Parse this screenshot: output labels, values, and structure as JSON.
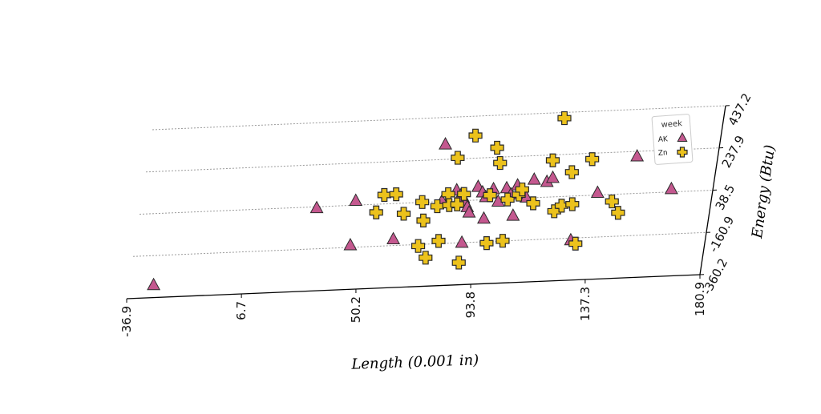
{
  "chart_data": {
    "type": "scatter",
    "title": "",
    "xlabel": "Length (0.001 in)",
    "ylabel": "Energy (Btu)",
    "xlim": [
      -36.9,
      180.9
    ],
    "ylim": [
      -360.2,
      437.2
    ],
    "x_ticks": [
      "-36.9",
      "6.7",
      "50.2",
      "93.8",
      "137.3",
      "180.9"
    ],
    "y_ticks": [
      "-360.2",
      "-160.9",
      "38.5",
      "237.9",
      "437.2"
    ],
    "grid": "horizontal dashed",
    "legend": {
      "title": "week",
      "placement": "top-right"
    },
    "series": [
      {
        "name": "AK",
        "marker": "triangle",
        "color": "#c4588f",
        "points": [
          [
            -27.4,
            -300.0
          ],
          [
            30.5,
            33.0
          ],
          [
            45.0,
            60.0
          ],
          [
            45.5,
            -150.0
          ],
          [
            61.6,
            -130.0
          ],
          [
            76.0,
            310.0
          ],
          [
            78.0,
            42.0
          ],
          [
            83.0,
            90.0
          ],
          [
            85.0,
            70.0
          ],
          [
            86.0,
            52.0
          ],
          [
            87.0,
            28.0
          ],
          [
            88.0,
            8.0
          ],
          [
            89.0,
            -18.0
          ],
          [
            91.0,
            102.0
          ],
          [
            93.0,
            75.0
          ],
          [
            94.5,
            52.0
          ],
          [
            95.0,
            -50.0
          ],
          [
            97.0,
            88.0
          ],
          [
            99.5,
            28.0
          ],
          [
            102.0,
            90.0
          ],
          [
            104.0,
            60.0
          ],
          [
            106.0,
            101.0
          ],
          [
            110.0,
            42.0
          ],
          [
            112.0,
            125.0
          ],
          [
            117.0,
            112.0
          ],
          [
            88.0,
            -160.0
          ],
          [
            106.0,
            -42.0
          ],
          [
            129.5,
            -170.0
          ],
          [
            137.0,
            50.0
          ],
          [
            150.0,
            215.0
          ],
          [
            165.0,
            53.0
          ],
          [
            119.0,
            130.0
          ]
        ]
      },
      {
        "name": "Zn",
        "marker": "plus",
        "color": "#ecc21c",
        "points": [
          [
            53.5,
            0.0
          ],
          [
            55.6,
            81.0
          ],
          [
            60.1,
            82.0
          ],
          [
            64.1,
            -12.0
          ],
          [
            70.5,
            40.0
          ],
          [
            71.5,
            -168.0
          ],
          [
            72.0,
            -48.0
          ],
          [
            75.0,
            -225.0
          ],
          [
            76.5,
            17.0
          ],
          [
            79.0,
            -148.0
          ],
          [
            80.0,
            72.0
          ],
          [
            81.0,
            20.0
          ],
          [
            81.5,
            243.0
          ],
          [
            84.0,
            22.0
          ],
          [
            86.0,
            70.0
          ],
          [
            87.0,
            345.0
          ],
          [
            88.0,
            -255.0
          ],
          [
            96.0,
            59.0
          ],
          [
            96.0,
            283.0
          ],
          [
            97.5,
            -168.0
          ],
          [
            98.0,
            210.0
          ],
          [
            103.0,
            35.0
          ],
          [
            103.5,
            -160.0
          ],
          [
            107.0,
            56.0
          ],
          [
            108.0,
            80.0
          ],
          [
            113.0,
            12.0
          ],
          [
            118.0,
            212.0
          ],
          [
            120.0,
            410.0
          ],
          [
            121.5,
            -30.0
          ],
          [
            124.0,
            -5.0
          ],
          [
            126.0,
            152.0
          ],
          [
            128.0,
            0.0
          ],
          [
            131.5,
            -188.0
          ],
          [
            133.0,
            210.0
          ],
          [
            143.0,
            5.0
          ],
          [
            146.0,
            -50.0
          ],
          [
            165.0,
            253.0
          ]
        ]
      }
    ]
  }
}
